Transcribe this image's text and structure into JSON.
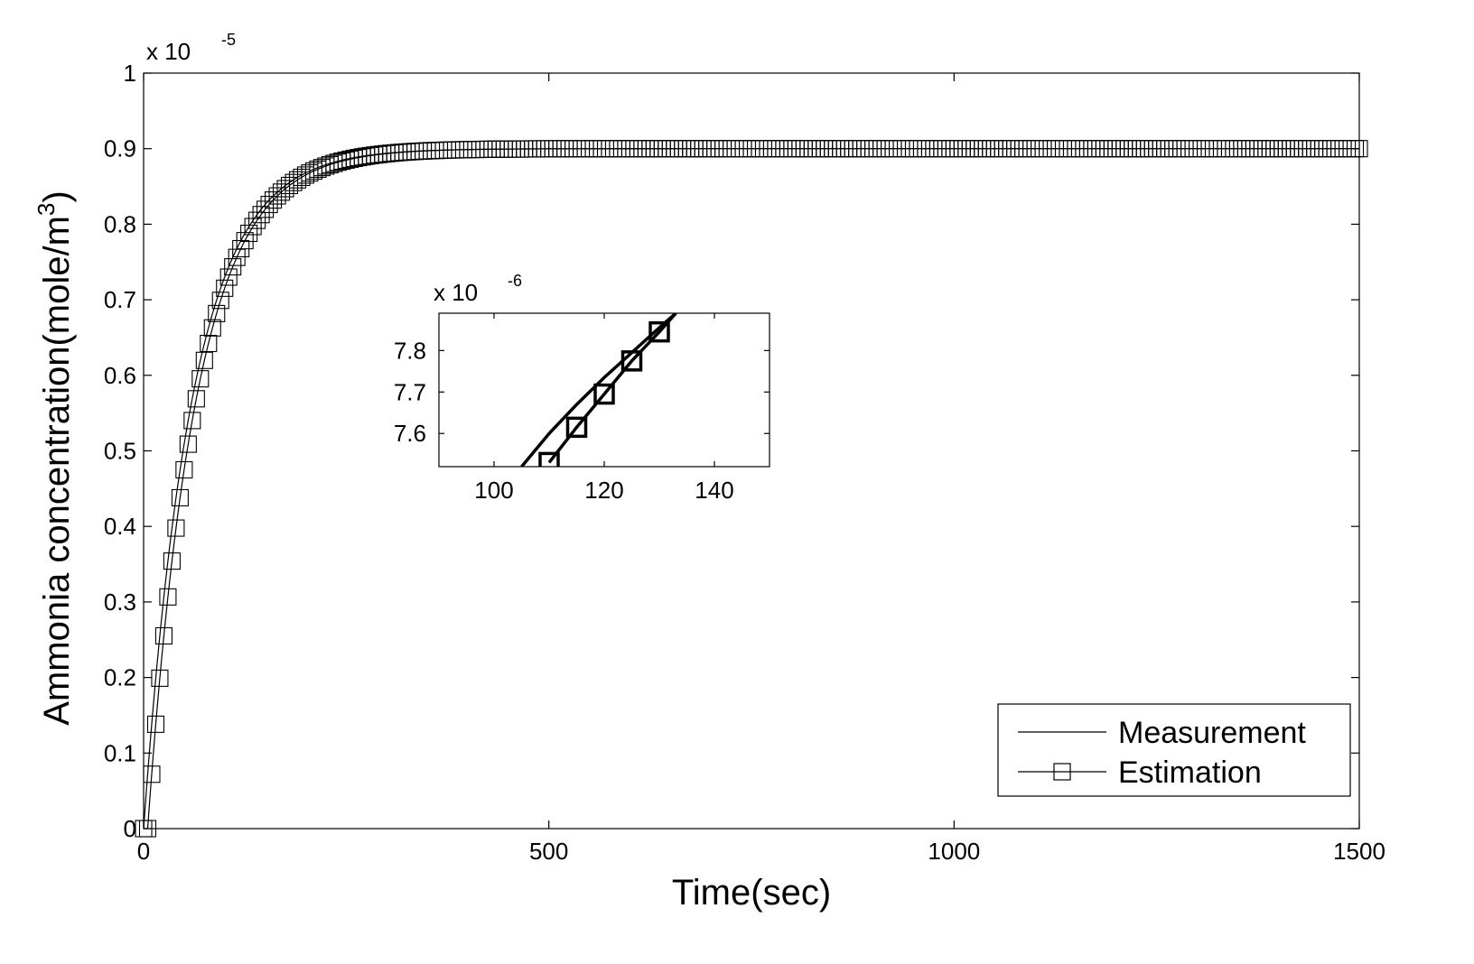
{
  "chart_data": {
    "type": "line",
    "xlabel": "Time(sec)",
    "ylabel_main": "Ammonia concentration(mole/m",
    "ylabel_sup": "3",
    "ylabel_close": ")",
    "xlim": [
      0,
      1500
    ],
    "ylim": [
      0,
      1
    ],
    "y_scale_base": "x 10",
    "y_scale_exp": "-5",
    "x_ticks": [
      0,
      500,
      1000,
      1500
    ],
    "x_tick_labels": [
      "0",
      "500",
      "1000",
      "1500"
    ],
    "y_ticks": [
      0,
      0.1,
      0.2,
      0.3,
      0.4,
      0.5,
      0.6,
      0.7,
      0.8,
      0.9,
      1
    ],
    "y_tick_labels": [
      "0",
      "0.1",
      "0.2",
      "0.3",
      "0.4",
      "0.5",
      "0.6",
      "0.7",
      "0.8",
      "0.9",
      "1"
    ],
    "grid": false,
    "legend_position": "bottom-right",
    "series": [
      {
        "name": "Measurement",
        "style": "solid line, no marker",
        "model": {
          "final": 0.9,
          "tau": 60,
          "delay": 0
        }
      },
      {
        "name": "Estimation",
        "style": "solid line with square markers every 5 sec",
        "marker": "square",
        "marker_step": 5,
        "model": {
          "final": 0.9,
          "tau": 60,
          "delay": 5
        }
      }
    ],
    "inset": {
      "xlim": [
        90,
        150
      ],
      "ylim": [
        7.52,
        7.89
      ],
      "y_scale_base": "x 10",
      "y_scale_exp": "-6",
      "x_ticks": [
        100,
        120,
        140
      ],
      "x_tick_labels": [
        "100",
        "120",
        "140"
      ],
      "y_ticks": [
        7.6,
        7.7,
        7.8
      ],
      "y_tick_labels": [
        "7.6",
        "7.7",
        "7.8"
      ],
      "measurement": {
        "x": [
          105,
          110,
          115,
          120,
          125,
          130,
          133
        ],
        "y": [
          7.52,
          7.6,
          7.67,
          7.735,
          7.795,
          7.855,
          7.89
        ]
      },
      "estimation": {
        "x": [
          110,
          115,
          120,
          125,
          130,
          133
        ],
        "y": [
          7.53,
          7.615,
          7.695,
          7.775,
          7.845,
          7.89
        ]
      },
      "estimation_marker_x": [
        110,
        115,
        120,
        125,
        130
      ]
    }
  }
}
